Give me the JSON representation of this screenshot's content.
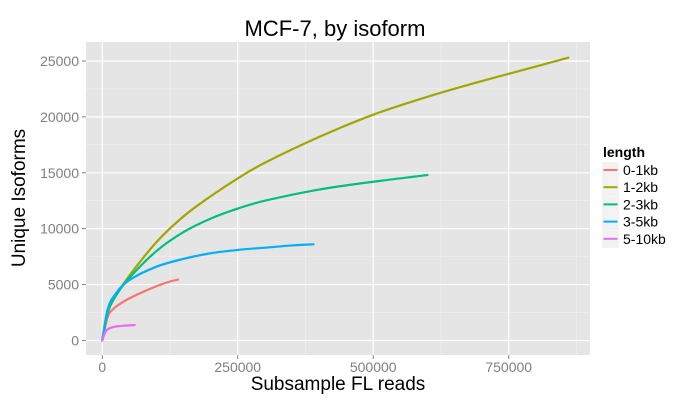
{
  "chart_data": {
    "type": "line",
    "title": "MCF-7, by isoform",
    "xlabel": "Subsample FL reads",
    "ylabel": "Unique Isoforms",
    "xlim": [
      -30000,
      900000
    ],
    "ylim": [
      -1300,
      26700
    ],
    "x_ticks": [
      0,
      250000,
      500000,
      750000
    ],
    "x_tick_labels": [
      "0",
      "250000",
      "500000",
      "750000"
    ],
    "y_ticks": [
      0,
      5000,
      10000,
      15000,
      20000,
      25000
    ],
    "y_tick_labels": [
      "0",
      "5000",
      "10000",
      "15000",
      "20000",
      "25000"
    ],
    "grid": true,
    "legend": {
      "title": "length",
      "placement": "right"
    },
    "series": [
      {
        "name": "0-1kb",
        "color": "#f8766d",
        "x": [
          0,
          10000,
          20000,
          40000,
          60000,
          80000,
          100000,
          120000,
          140000
        ],
        "y": [
          0,
          2100,
          2800,
          3500,
          4000,
          4450,
          4850,
          5200,
          5450
        ]
      },
      {
        "name": "1-2kb",
        "color": "#a3a500",
        "x": [
          0,
          10000,
          25000,
          50000,
          100000,
          150000,
          200000,
          250000,
          300000,
          400000,
          500000,
          600000,
          700000,
          800000,
          860000
        ],
        "y": [
          0,
          2500,
          4000,
          5800,
          8800,
          11100,
          12900,
          14500,
          15900,
          18200,
          20200,
          21800,
          23200,
          24500,
          25300
        ]
      },
      {
        "name": "2-3kb",
        "color": "#00bf7d",
        "x": [
          0,
          10000,
          25000,
          50000,
          100000,
          150000,
          200000,
          250000,
          300000,
          400000,
          500000,
          600000
        ],
        "y": [
          0,
          2500,
          4000,
          5600,
          8000,
          9700,
          10900,
          11800,
          12500,
          13500,
          14200,
          14800
        ]
      },
      {
        "name": "3-5kb",
        "color": "#00b0f6",
        "x": [
          0,
          10000,
          25000,
          50000,
          100000,
          150000,
          200000,
          250000,
          300000,
          350000,
          390000
        ],
        "y": [
          0,
          2800,
          4200,
          5400,
          6600,
          7300,
          7800,
          8100,
          8300,
          8500,
          8600
        ]
      },
      {
        "name": "5-10kb",
        "color": "#e76bf3",
        "x": [
          0,
          5000,
          10000,
          20000,
          30000,
          40000,
          50000,
          60000
        ],
        "y": [
          0,
          700,
          1000,
          1200,
          1280,
          1320,
          1350,
          1380
        ]
      }
    ]
  }
}
